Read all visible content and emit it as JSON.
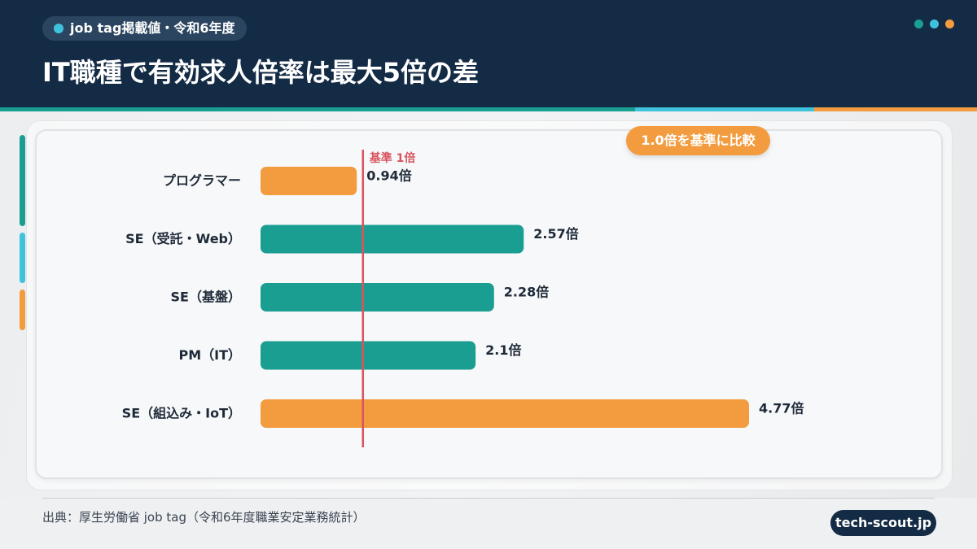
{
  "header": {
    "tag": "job tag掲載値・令和6年度",
    "title": "IT職種で有効求人倍率は最大5倍の差",
    "dots": [
      "#1a9e92",
      "#3fc2dc",
      "#f29c3f"
    ]
  },
  "badge": "1.0倍を基準に比較",
  "chart_data": {
    "type": "bar",
    "orientation": "horizontal",
    "categories": [
      "プログラマー",
      "SE（受託・Web）",
      "SE（基盤）",
      "PM（IT）",
      "SE（組込み・IoT）"
    ],
    "values": [
      0.94,
      2.57,
      2.28,
      2.1,
      4.77
    ],
    "value_labels": [
      "0.94倍",
      "2.57倍",
      "2.28倍",
      "2.1倍",
      "4.77倍"
    ],
    "bar_colors": [
      "#f29c3f",
      "#1a9e92",
      "#1a9e92",
      "#1a9e92",
      "#f29c3f"
    ],
    "reference_line": {
      "value": 1.0,
      "label": "基準 1倍",
      "color": "#d9545f"
    },
    "xlim": [
      0,
      5
    ],
    "grid": false,
    "legend": false
  },
  "footer": {
    "source": "出典：厚生労働省 job tag（令和6年度職業安定業務統計）",
    "brand": "tech-scout.jp"
  },
  "colors": {
    "navy": "#142b45",
    "teal": "#1a9e92",
    "cyan": "#3fc2dc",
    "orange": "#f29c3f",
    "red": "#d9545f"
  }
}
